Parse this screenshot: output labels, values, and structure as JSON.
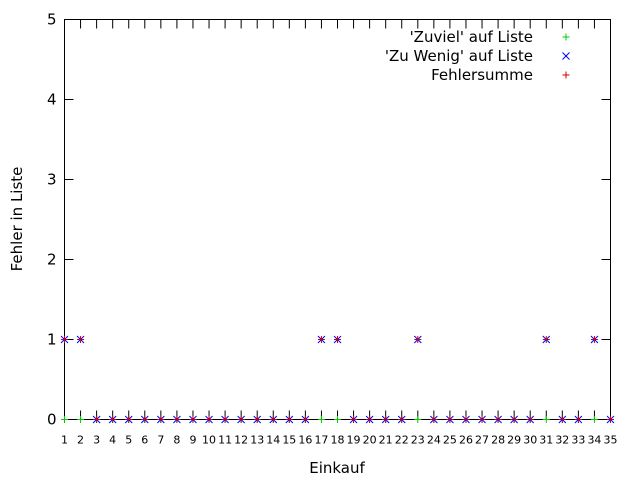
{
  "chart_data": {
    "type": "scatter",
    "xlabel": "Einkauf",
    "ylabel": "Fehler in Liste",
    "xlim": [
      1,
      35
    ],
    "ylim": [
      0,
      5
    ],
    "x_ticks": [
      "1",
      "2",
      "3",
      "4",
      "5",
      "6",
      "7",
      "8",
      "9",
      "10",
      "11",
      "12",
      "13",
      "14",
      "15",
      "16",
      "17",
      "18",
      "19",
      "20",
      "21",
      "22",
      "23",
      "24",
      "25",
      "26",
      "27",
      "28",
      "29",
      "30",
      "31",
      "32",
      "33",
      "34",
      "35"
    ],
    "y_ticks": [
      "0",
      "1",
      "2",
      "3",
      "4",
      "5"
    ],
    "grid": false,
    "legend_position": "top-right",
    "x": [
      1,
      2,
      3,
      4,
      5,
      6,
      7,
      8,
      9,
      10,
      11,
      12,
      13,
      14,
      15,
      16,
      17,
      18,
      19,
      20,
      21,
      22,
      23,
      24,
      25,
      26,
      27,
      28,
      29,
      30,
      31,
      32,
      33,
      34,
      35
    ],
    "series": [
      {
        "name": "'Zuviel' auf Liste",
        "marker": "+",
        "color": "#00cc00",
        "values": [
          0,
          0,
          0,
          0,
          0,
          0,
          0,
          0,
          0,
          0,
          0,
          0,
          0,
          0,
          0,
          0,
          0,
          0,
          0,
          0,
          0,
          0,
          0,
          0,
          0,
          0,
          0,
          0,
          0,
          0,
          0,
          0,
          0,
          0,
          0
        ]
      },
      {
        "name": "'Zu Wenig' auf Liste",
        "marker": "x",
        "color": "#0000ff",
        "values": [
          1,
          1,
          0,
          0,
          0,
          0,
          0,
          0,
          0,
          0,
          0,
          0,
          0,
          0,
          0,
          0,
          1,
          1,
          0,
          0,
          0,
          0,
          1,
          0,
          0,
          0,
          0,
          0,
          0,
          0,
          1,
          0,
          0,
          1,
          0
        ]
      },
      {
        "name": "Fehlersumme",
        "marker": "+",
        "color": "#cc0000",
        "values": [
          1,
          1,
          0,
          0,
          0,
          0,
          0,
          0,
          0,
          0,
          0,
          0,
          0,
          0,
          0,
          0,
          1,
          1,
          0,
          0,
          0,
          0,
          1,
          0,
          0,
          0,
          0,
          0,
          0,
          0,
          1,
          0,
          0,
          1,
          0
        ]
      }
    ]
  }
}
